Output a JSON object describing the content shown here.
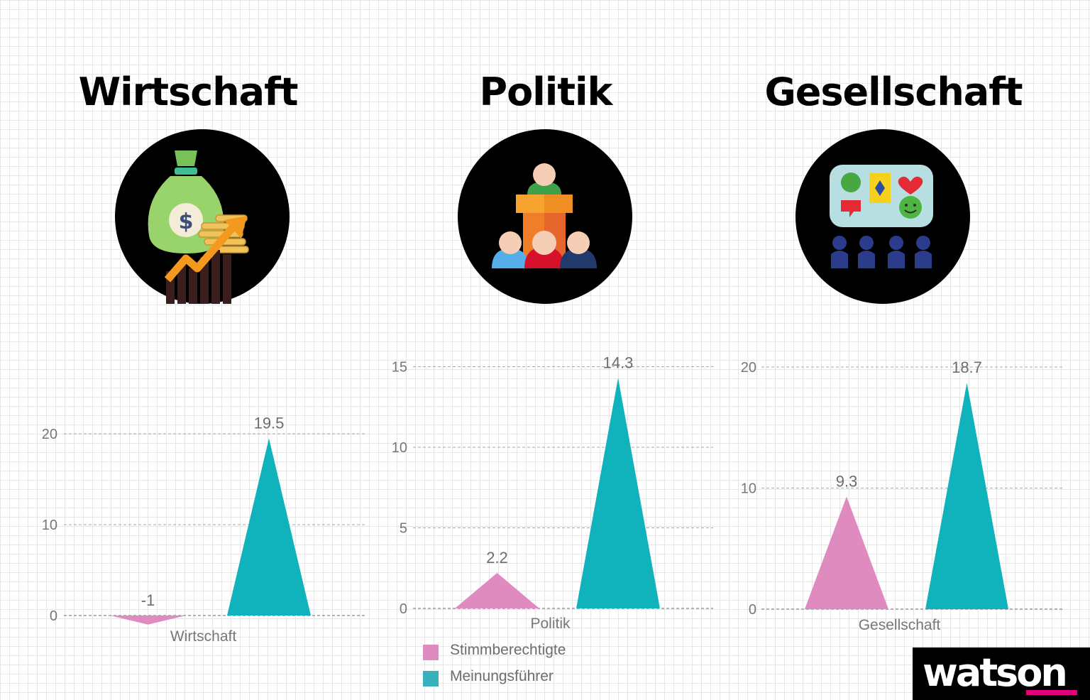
{
  "panels": [
    {
      "title": "Wirtschaft",
      "icon": "money-bag-growth-icon"
    },
    {
      "title": "Politik",
      "icon": "politician-speaking-audience-icon"
    },
    {
      "title": "Gesellschaft",
      "icon": "society-social-media-icon"
    }
  ],
  "chart_data": [
    {
      "type": "area",
      "title": "",
      "categories": [
        "Wirtschaft"
      ],
      "series": [
        {
          "name": "Stimmberechtigte",
          "values": [
            -1
          ],
          "color": "#e08bbf"
        },
        {
          "name": "Meinungsführer",
          "values": [
            19.5
          ],
          "color": "#10b2bb"
        }
      ],
      "data_labels": [
        "-1",
        "19.5"
      ],
      "yticks": [
        0,
        10,
        20
      ],
      "ylim": [
        -2,
        20
      ],
      "grid": true
    },
    {
      "type": "area",
      "title": "",
      "categories": [
        "Politik"
      ],
      "series": [
        {
          "name": "Stimmberechtigte",
          "values": [
            2.2
          ],
          "color": "#e08bbf"
        },
        {
          "name": "Meinungsführer",
          "values": [
            14.3
          ],
          "color": "#10b2bb"
        }
      ],
      "data_labels": [
        "2.2",
        "14.3"
      ],
      "yticks": [
        0,
        5,
        10,
        15
      ],
      "ylim": [
        0,
        15
      ],
      "grid": true
    },
    {
      "type": "area",
      "title": "",
      "categories": [
        "Gesellschaft"
      ],
      "series": [
        {
          "name": "Stimmberechtigte",
          "values": [
            9.3
          ],
          "color": "#e08bbf"
        },
        {
          "name": "Meinungsführer",
          "values": [
            18.7
          ],
          "color": "#10b2bb"
        }
      ],
      "data_labels": [
        "9.3",
        "18.7"
      ],
      "yticks": [
        0,
        10,
        20
      ],
      "ylim": [
        0,
        20
      ],
      "grid": true
    }
  ],
  "legend": [
    {
      "label": "Stimmberechtigte",
      "color": "#e08bbf"
    },
    {
      "label": "Meinungsführer",
      "color": "#38b1bd"
    }
  ],
  "logo": {
    "text": "watson",
    "accent": "#e4007c"
  }
}
